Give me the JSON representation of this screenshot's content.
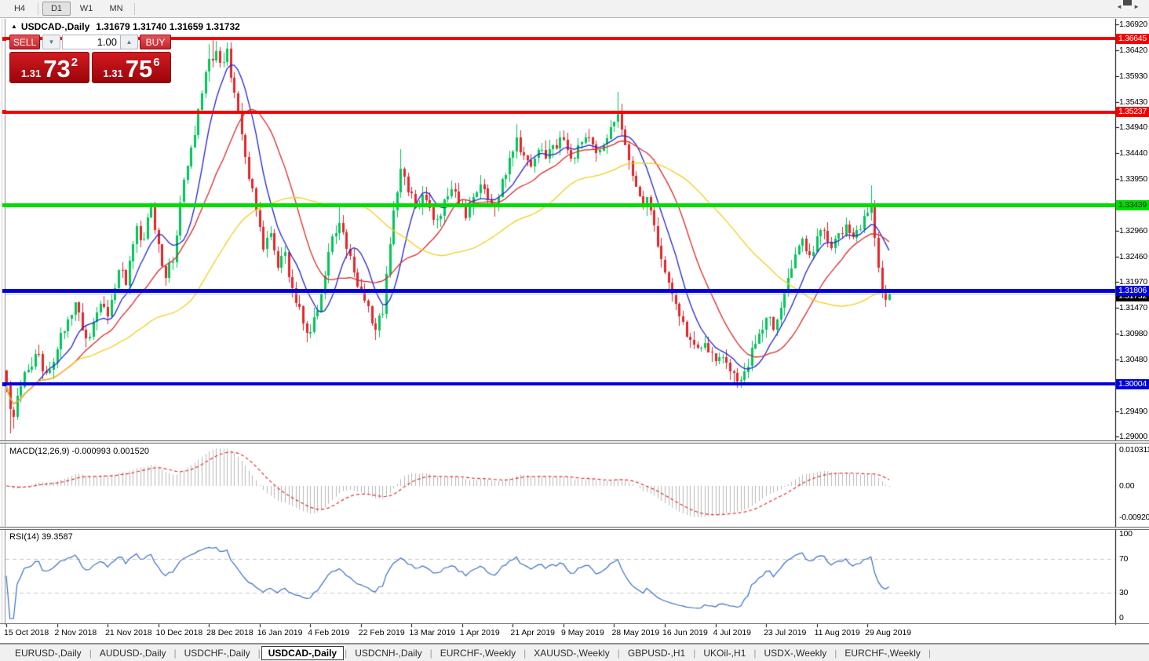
{
  "toolbar": {
    "timeframes": [
      {
        "label": "H4",
        "active": false
      },
      {
        "label": "D1",
        "active": true
      },
      {
        "label": "W1",
        "active": false
      },
      {
        "label": "MN",
        "active": false
      }
    ]
  },
  "chart": {
    "title_symbol": "USDCAD-,Daily",
    "title_quotes": "1.31679 1.31740 1.31659 1.31732",
    "collapse_arrow": "▲",
    "trade_panel": {
      "sell_label": "SELL",
      "buy_label": "BUY",
      "volume": "1.00",
      "spin_down": "▼",
      "spin_up": "▲",
      "sell_price": {
        "small": "1.31",
        "big": "73",
        "sup": "2"
      },
      "buy_price": {
        "small": "1.31",
        "big": "75",
        "sup": "6"
      }
    }
  },
  "chart_data": {
    "type": "candlestick",
    "symbol": "USDCAD-",
    "timeframe": "Daily",
    "ohlc_display": {
      "open": "1.31679",
      "high": "1.31740",
      "low": "1.31659",
      "close": "1.31732"
    },
    "y_ticks": [
      "1.36920",
      "1.36420",
      "1.35930",
      "1.35430",
      "1.34940",
      "1.34440",
      "1.33950",
      "1.32960",
      "1.32460",
      "1.31970",
      "1.31470",
      "1.30980",
      "1.30480",
      "1.29490",
      "1.29000"
    ],
    "x_labels": [
      "15 Oct 2018",
      "2 Nov 2018",
      "21 Nov 2018",
      "10 Dec 2018",
      "28 Dec 2018",
      "16 Jan 2019",
      "4 Feb 2019",
      "22 Feb 2019",
      "13 Mar 2019",
      "1 Apr 2019",
      "21 Apr 2019",
      "9 May 2019",
      "28 May 2019",
      "16 Jun 2019",
      "4 Jul 2019",
      "23 Jul 2019",
      "11 Aug 2019",
      "29 Aug 2019"
    ],
    "candles_per_label": 14,
    "hlines": [
      {
        "value": 1.36645,
        "label": "1.36645",
        "color": "#f40000",
        "text_color": "#ffffff",
        "thickness": 4
      },
      {
        "value": 1.35237,
        "label": "1.35237",
        "color": "#f40000",
        "text_color": "#ffffff",
        "thickness": 4
      },
      {
        "value": 1.33439,
        "label": "1.33439",
        "color": "#00dc00",
        "text_color": "#003300",
        "thickness": 5
      },
      {
        "value": 1.31806,
        "label": "1.31806",
        "color": "#0000dc",
        "text_color": "#ffffff",
        "thickness": 5
      },
      {
        "value": 1.30004,
        "label": "1.30004",
        "color": "#0000dc",
        "text_color": "#ffffff",
        "thickness": 4
      }
    ],
    "bid": {
      "value": 1.31732,
      "label": "1.31732",
      "line_color": "#b4b4b4",
      "label_bg": "#000000",
      "text_color": "#ffffff"
    },
    "candle_colors": {
      "up": "#00c65a",
      "down": "#e3262b"
    },
    "moving_averages": [
      {
        "name": "fast",
        "period": 9,
        "color": "#2323d0"
      },
      {
        "name": "medium",
        "period": 20,
        "color": "#dc2a2a"
      },
      {
        "name": "slow",
        "period": 52,
        "color": "#f2cf1d"
      }
    ],
    "price_anchors": [
      [
        0,
        1.2998
      ],
      [
        1,
        1.2952
      ],
      [
        2,
        1.2938
      ],
      [
        4,
        1.2996
      ],
      [
        6,
        1.3028
      ],
      [
        9,
        1.3058
      ],
      [
        11,
        1.3022
      ],
      [
        14,
        1.3068
      ],
      [
        17,
        1.3125
      ],
      [
        19,
        1.3158
      ],
      [
        21,
        1.3105
      ],
      [
        23,
        1.3092
      ],
      [
        26,
        1.3155
      ],
      [
        28,
        1.313
      ],
      [
        31,
        1.322
      ],
      [
        33,
        1.319
      ],
      [
        36,
        1.3305
      ],
      [
        38,
        1.328
      ],
      [
        40,
        1.334
      ],
      [
        42,
        1.327
      ],
      [
        44,
        1.3205
      ],
      [
        46,
        1.3235
      ],
      [
        48,
        1.335
      ],
      [
        50,
        1.342
      ],
      [
        52,
        1.348
      ],
      [
        54,
        1.356
      ],
      [
        56,
        1.3625
      ],
      [
        58,
        1.364
      ],
      [
        60,
        1.362
      ],
      [
        61,
        1.3645
      ],
      [
        63,
        1.356
      ],
      [
        65,
        1.348
      ],
      [
        67,
        1.3395
      ],
      [
        69,
        1.3335
      ],
      [
        71,
        1.326
      ],
      [
        73,
        1.329
      ],
      [
        75,
        1.3225
      ],
      [
        77,
        1.3255
      ],
      [
        79,
        1.3185
      ],
      [
        81,
        1.315
      ],
      [
        83,
        1.3098
      ],
      [
        85,
        1.313
      ],
      [
        87,
        1.3175
      ],
      [
        89,
        1.3255
      ],
      [
        92,
        1.331
      ],
      [
        94,
        1.326
      ],
      [
        96,
        1.3215
      ],
      [
        98,
        1.318
      ],
      [
        100,
        1.315
      ],
      [
        102,
        1.3105
      ],
      [
        104,
        1.3135
      ],
      [
        106,
        1.327
      ],
      [
        107,
        1.3335
      ],
      [
        109,
        1.3415
      ],
      [
        111,
        1.337
      ],
      [
        113,
        1.334
      ],
      [
        115,
        1.3365
      ],
      [
        117,
        1.334
      ],
      [
        119,
        1.3318
      ],
      [
        121,
        1.3355
      ],
      [
        123,
        1.3375
      ],
      [
        125,
        1.3345
      ],
      [
        127,
        1.332
      ],
      [
        129,
        1.336
      ],
      [
        131,
        1.3385
      ],
      [
        133,
        1.3355
      ],
      [
        135,
        1.334
      ],
      [
        137,
        1.3395
      ],
      [
        139,
        1.3435
      ],
      [
        141,
        1.3475
      ],
      [
        143,
        1.344
      ],
      [
        145,
        1.342
      ],
      [
        147,
        1.345
      ],
      [
        149,
        1.3435
      ],
      [
        151,
        1.346
      ],
      [
        153,
        1.3475
      ],
      [
        155,
        1.345
      ],
      [
        157,
        1.3435
      ],
      [
        159,
        1.3465
      ],
      [
        161,
        1.3475
      ],
      [
        163,
        1.3445
      ],
      [
        165,
        1.346
      ],
      [
        167,
        1.3495
      ],
      [
        169,
        1.352
      ],
      [
        170,
        1.349
      ],
      [
        172,
        1.343
      ],
      [
        174,
        1.338
      ],
      [
        176,
        1.334
      ],
      [
        177,
        1.336
      ],
      [
        179,
        1.3305
      ],
      [
        181,
        1.324
      ],
      [
        183,
        1.3195
      ],
      [
        185,
        1.3155
      ],
      [
        187,
        1.312
      ],
      [
        189,
        1.3085
      ],
      [
        191,
        1.307
      ],
      [
        193,
        1.308
      ],
      [
        195,
        1.306
      ],
      [
        197,
        1.3052
      ],
      [
        199,
        1.3042
      ],
      [
        201,
        1.3022
      ],
      [
        203,
        1.3008
      ],
      [
        204,
        1.3025
      ],
      [
        206,
        1.307
      ],
      [
        208,
        1.3098
      ],
      [
        210,
        1.3128
      ],
      [
        212,
        1.3105
      ],
      [
        214,
        1.3148
      ],
      [
        216,
        1.3205
      ],
      [
        218,
        1.325
      ],
      [
        220,
        1.328
      ],
      [
        222,
        1.3248
      ],
      [
        224,
        1.3285
      ],
      [
        226,
        1.3295
      ],
      [
        228,
        1.3262
      ],
      [
        230,
        1.329
      ],
      [
        232,
        1.3308
      ],
      [
        234,
        1.3282
      ],
      [
        236,
        1.3298
      ],
      [
        238,
        1.333
      ],
      [
        239,
        1.3345
      ],
      [
        240,
        1.3282
      ],
      [
        241,
        1.3225
      ],
      [
        242,
        1.318
      ],
      [
        243,
        1.3162
      ],
      [
        244,
        1.31732
      ]
    ],
    "wick_highs": {
      "56": 1.3655,
      "57": 1.3662,
      "58": 1.366,
      "61": 1.3658,
      "92": 1.3342,
      "109": 1.3452,
      "141": 1.35,
      "169": 1.3562,
      "170": 1.354,
      "239": 1.3382
    },
    "wick_lows": {
      "1": 1.2906,
      "2": 1.2915,
      "83": 1.3082,
      "102": 1.3085,
      "201": 1.2999,
      "203": 1.2993,
      "204": 1.2997
    },
    "indicators": [
      {
        "name": "MACD",
        "label": "MACD(12,26,9) -0.000993 0.001520",
        "params": [
          12,
          26,
          9
        ],
        "values_text": [
          "-0.000993",
          "0.001520"
        ],
        "axis_labels": [
          "0.010311",
          "0.00",
          "-0.009203"
        ],
        "histogram_color": "#b9b9b9",
        "signal_color": "#e03030"
      },
      {
        "name": "RSI",
        "label": "RSI(14) 39.3587",
        "period": 14,
        "value_text": "39.3587",
        "axis_labels": [
          "100",
          "70",
          "30",
          "0"
        ],
        "levels": [
          70,
          30
        ],
        "line_color": "#3a6fc4",
        "level_color": "#c8c8c8"
      }
    ]
  },
  "tabbar": {
    "tabs": [
      {
        "label": "EURUSD-,Daily",
        "active": false
      },
      {
        "label": "AUDUSD-,Daily",
        "active": false
      },
      {
        "label": "USDCHF-,Daily",
        "active": false
      },
      {
        "label": "USDCAD-,Daily",
        "active": true
      },
      {
        "label": "USDCNH-,Daily",
        "active": false
      },
      {
        "label": "EURCHF-,Weekly",
        "active": false
      },
      {
        "label": "XAUUSD-,Weekly",
        "active": false
      },
      {
        "label": "GBPUSD-,H1",
        "active": false
      },
      {
        "label": "UKOil-,H1",
        "active": false
      },
      {
        "label": "USDX-,Weekly",
        "active": false
      },
      {
        "label": "EURCHF-,Weekly",
        "active": false
      }
    ],
    "nav_left": "◄",
    "nav_right": "►"
  }
}
